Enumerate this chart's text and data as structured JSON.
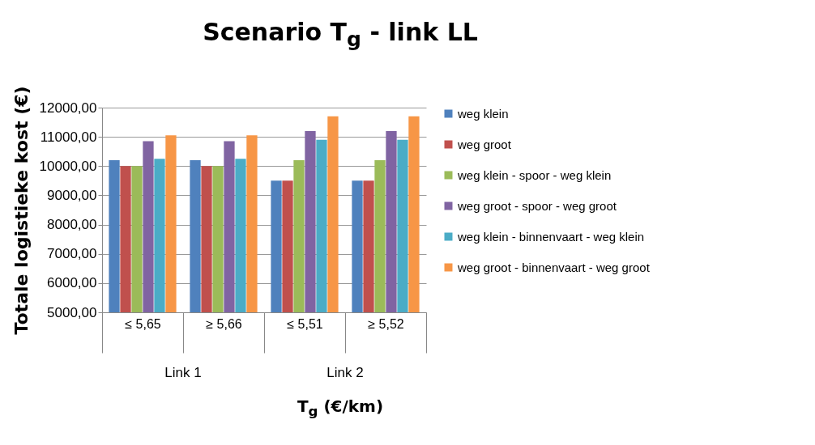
{
  "chart_data": {
    "type": "bar",
    "title": "Scenario T$_{g}$ - link LL",
    "xlabel": "T$_{g}$  (€/km)",
    "ylabel": "Totale logistieke kost (€)",
    "categories": [
      "≤ 5,65",
      "≥ 5,66",
      "≤ 5,51",
      "≥ 5,52"
    ],
    "annotations": [
      "Link 1",
      "Link 2"
    ],
    "series": [
      {
        "name": "weg klein",
        "color": "#4f81bd",
        "values": [
          10200,
          10200,
          9500,
          9500
        ]
      },
      {
        "name": "weg groot",
        "color": "#c0504d",
        "values": [
          10000,
          10000,
          9500,
          9500
        ]
      },
      {
        "name": "weg klein - spoor - weg klein",
        "color": "#9bbb59",
        "values": [
          10000,
          10000,
          10200,
          10200
        ]
      },
      {
        "name": "weg groot - spoor - weg groot",
        "color": "#8064a2",
        "values": [
          10850,
          10850,
          11200,
          11200
        ]
      },
      {
        "name": "weg klein - binnenvaart - weg klein",
        "color": "#4bacc6",
        "values": [
          10250,
          10250,
          10900,
          10900
        ]
      },
      {
        "name": "weg groot - binnenvaart - weg groot",
        "color": "#f79646",
        "values": [
          11050,
          11050,
          11700,
          11700
        ]
      }
    ],
    "ylim": [
      5000,
      12000
    ],
    "yticks": [
      {
        "value": 5000,
        "label": "5000,00"
      },
      {
        "value": 6000,
        "label": "6000,00"
      },
      {
        "value": 7000,
        "label": "7000,00"
      },
      {
        "value": 8000,
        "label": "8000,00"
      },
      {
        "value": 9000,
        "label": "9000,00"
      },
      {
        "value": 10000,
        "label": "10000,00"
      },
      {
        "value": 11000,
        "label": "11000,00"
      },
      {
        "value": 12000,
        "label": "12000,00"
      }
    ],
    "grid": "y",
    "legend": "right"
  }
}
